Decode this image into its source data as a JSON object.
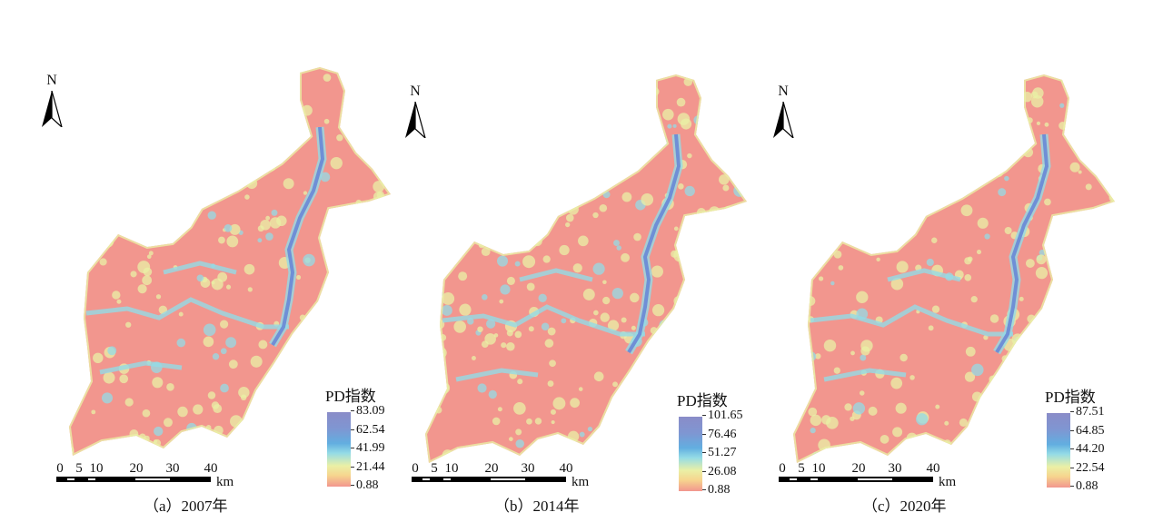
{
  "panels": [
    {
      "caption": "（a）2007年",
      "north_label": "N",
      "legend_title": "PD指数",
      "legend_ticks": [
        "83.09",
        "62.54",
        "41.99",
        "21.44",
        "0.88"
      ],
      "scale_labels": [
        "0",
        "5",
        "10",
        "20",
        "30",
        "40"
      ],
      "scale_unit": "km"
    },
    {
      "caption": "（b）2014年",
      "north_label": "N",
      "legend_title": "PD指数",
      "legend_ticks": [
        "101.65",
        "76.46",
        "51.27",
        "26.08",
        "0.88"
      ],
      "scale_labels": [
        "0",
        "5",
        "10",
        "20",
        "30",
        "40"
      ],
      "scale_unit": "km"
    },
    {
      "caption": "（c）2020年",
      "north_label": "N",
      "legend_title": "PD指数",
      "legend_ticks": [
        "87.51",
        "64.85",
        "44.20",
        "22.54",
        "0.88"
      ],
      "scale_labels": [
        "0",
        "5",
        "10",
        "20",
        "30",
        "40"
      ],
      "scale_unit": "km"
    }
  ],
  "colors": {
    "low": "#f2968e",
    "mid_low": "#eaf0a6",
    "mid": "#94dbe6",
    "high": "#8a8cc8",
    "river": "#6f8fd6"
  }
}
